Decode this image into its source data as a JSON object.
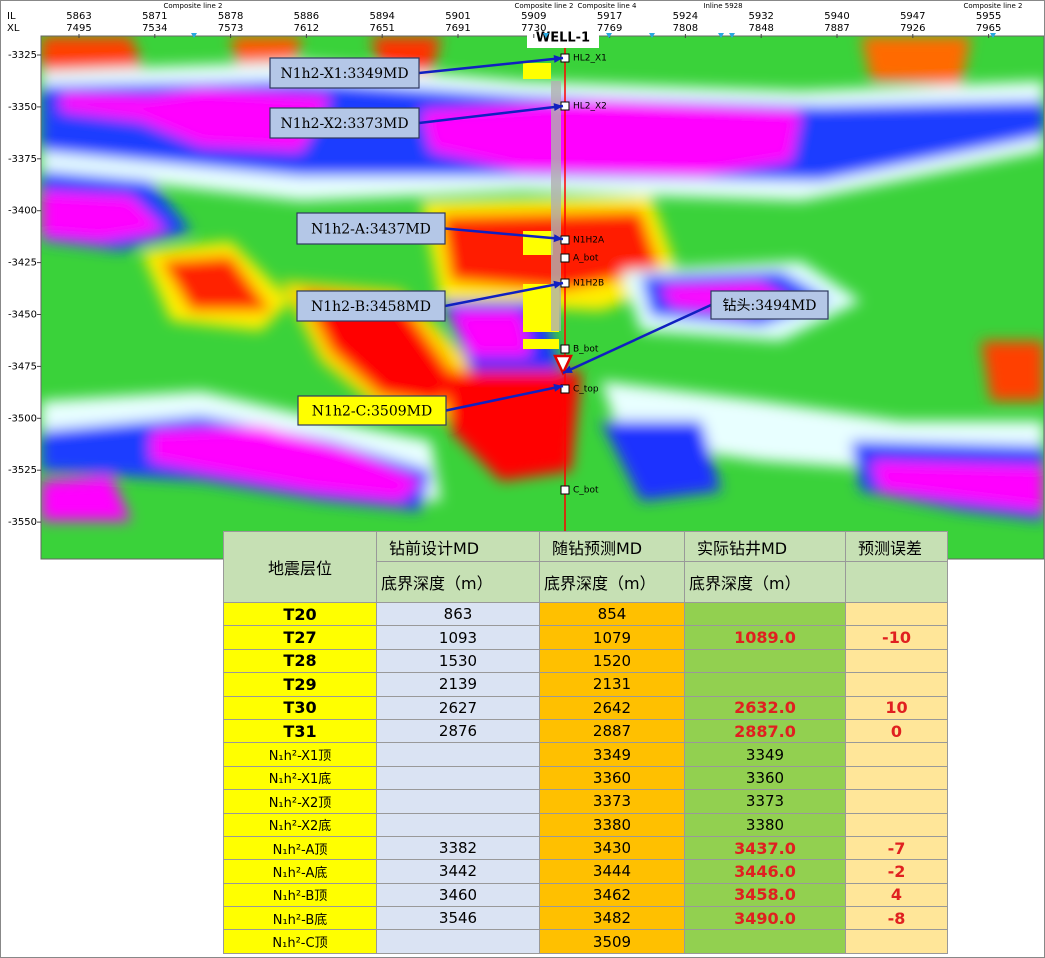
{
  "section": {
    "axis_labels": [
      "IL",
      "XL"
    ],
    "top_ticks": [
      {
        "il": 5863,
        "xl": 7495
      },
      {
        "il": 5871,
        "xl": 7534
      },
      {
        "il": 5878,
        "xl": 7573
      },
      {
        "il": 5886,
        "xl": 7612
      },
      {
        "il": 5894,
        "xl": 7651
      },
      {
        "il": 5901,
        "xl": 7691
      },
      {
        "il": 5909,
        "xl": 7730
      },
      {
        "il": 5917,
        "xl": 7769
      },
      {
        "il": 5924,
        "xl": 7808
      },
      {
        "il": 5932,
        "xl": 7848
      },
      {
        "il": 5940,
        "xl": 7887
      },
      {
        "il": 5947,
        "xl": 7926
      },
      {
        "il": 5955,
        "xl": 7965
      }
    ],
    "survey_labels": [
      "Composite line 2",
      "Composite line 2",
      "Composite line 4",
      "Inline 5928",
      "Composite line 2"
    ],
    "depth_ticks": [
      -3325,
      -3350,
      -3375,
      -3400,
      -3425,
      -3450,
      -3475,
      -3500,
      -3525,
      -3550
    ],
    "well_name": "WELL-1",
    "horizons": [
      "HL2_X1",
      "HL2_X2",
      "N1H2A",
      "A_bot",
      "N1H2B",
      "B_bot",
      "C_top",
      "C_bot"
    ],
    "callouts": [
      "N1h2-X1:3349MD",
      "N1h2-X2:3373MD",
      "N1h2-A:3437MD",
      "N1h2-B:3458MD",
      "钻头:3494MD",
      "N1h2-C:3509MD"
    ]
  },
  "table": {
    "header": [
      [
        "地震层位",
        "钻前设计MD",
        "随钻预测MD",
        "实际钻井MD",
        "预测误差"
      ],
      [
        "底界深度（m）",
        "底界深度（m）",
        "底界深度（m）"
      ]
    ],
    "rows": [
      [
        "T20",
        863,
        854,
        null,
        null
      ],
      [
        "T27",
        1093,
        1079,
        "1089.0",
        -10
      ],
      [
        "T28",
        1530,
        1520,
        null,
        null
      ],
      [
        "T29",
        2139,
        2131,
        null,
        null
      ],
      [
        "T30",
        2627,
        2642,
        "2632.0",
        10
      ],
      [
        "T31",
        2876,
        2887,
        "2887.0",
        0
      ],
      [
        "N₁h²-X1顶",
        null,
        3349,
        3349,
        null
      ],
      [
        "N₁h²-X1底",
        null,
        3360,
        3360,
        null
      ],
      [
        "N₁h²-X2顶",
        null,
        3373,
        3373,
        null
      ],
      [
        "N₁h²-X2底",
        null,
        3380,
        3380,
        null
      ],
      [
        "N₁h²-A顶",
        3382,
        3430,
        "3437.0",
        -7
      ],
      [
        "N₁h²-A底",
        3442,
        3444,
        "3446.0",
        -2
      ],
      [
        "N₁h²-B顶",
        3460,
        3462,
        "3458.0",
        4
      ],
      [
        "N₁h²-B底",
        3546,
        3482,
        "3490.0",
        -8
      ],
      [
        "N₁h²-C顶",
        null,
        3509,
        null,
        null
      ]
    ]
  }
}
